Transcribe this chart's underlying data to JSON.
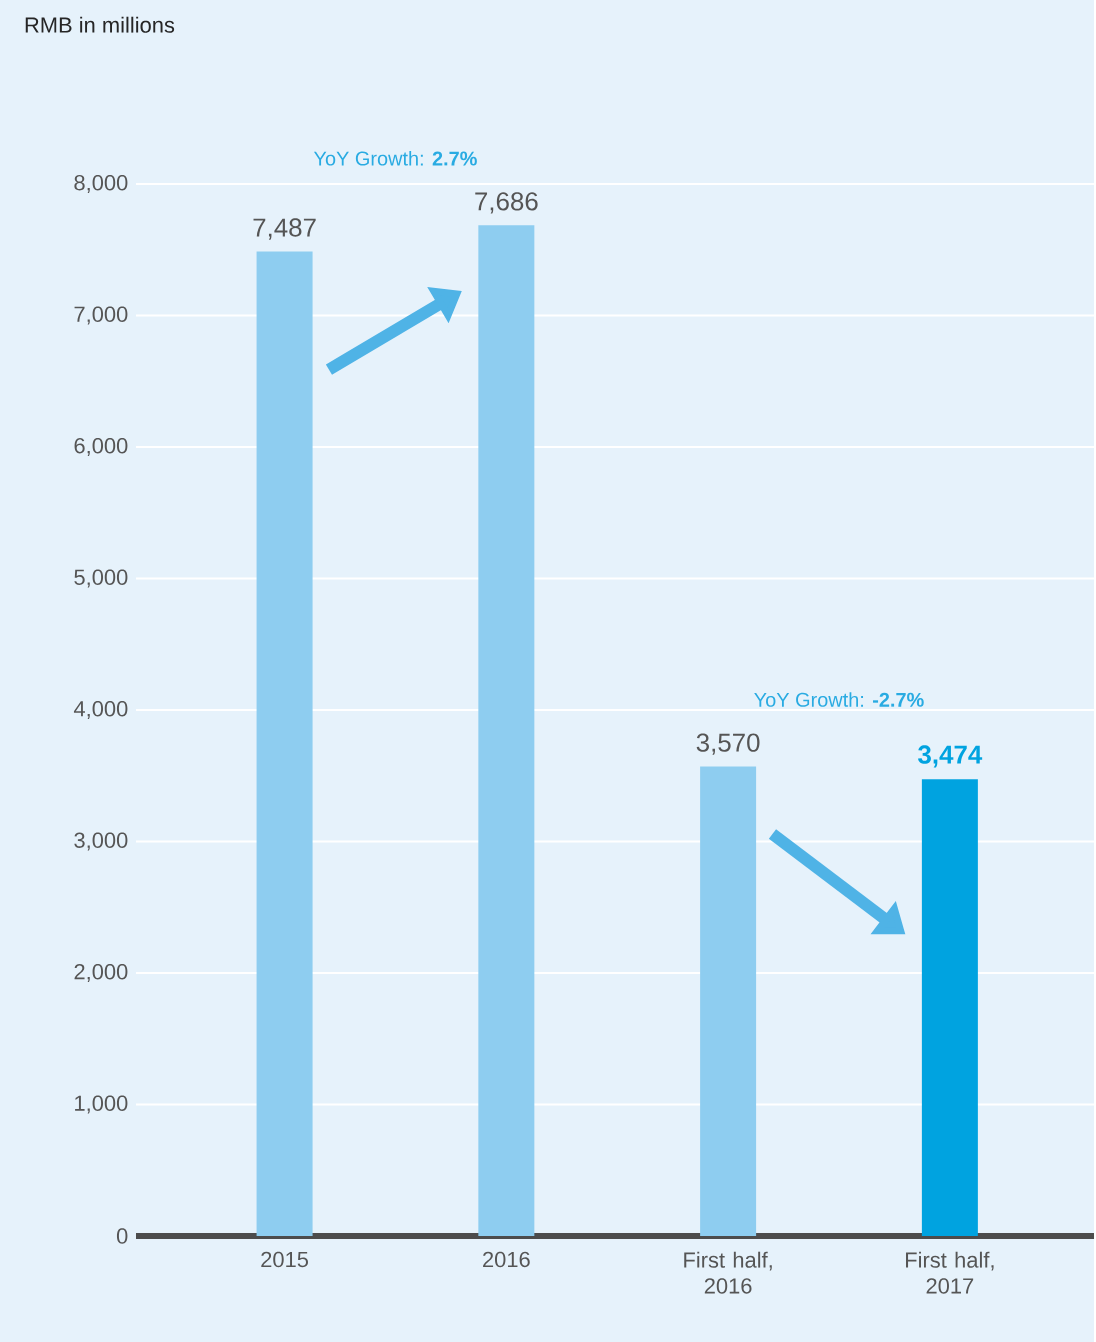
{
  "chart_data": {
    "type": "bar",
    "title": "RMB in millions",
    "categories": [
      "2015",
      "2016",
      "First half, 2016",
      "First half, 2017"
    ],
    "values": [
      7487,
      7686,
      3570,
      3474
    ],
    "colors": [
      "#8ecdf0",
      "#8ecdf0",
      "#8ecdf0",
      "#00a3e0"
    ],
    "value_labels": [
      "7,487",
      "7,686",
      "3,570",
      "3,474"
    ],
    "ylim": [
      0,
      8000
    ],
    "yticks": [
      {
        "value": 0,
        "label": "0"
      },
      {
        "value": 1000,
        "label": "1,000"
      },
      {
        "value": 2000,
        "label": "2,000"
      },
      {
        "value": 3000,
        "label": "3,000"
      },
      {
        "value": 4000,
        "label": "4,000"
      },
      {
        "value": 5000,
        "label": "5,000"
      },
      {
        "value": 6000,
        "label": "6,000"
      },
      {
        "value": 7000,
        "label": "7,000"
      },
      {
        "value": 8000,
        "label": "8,000"
      }
    ],
    "grid": "y",
    "annotations": [
      "YoY Growth: **2.7%**",
      "YoY Growth: **-2.7%**"
    ]
  }
}
